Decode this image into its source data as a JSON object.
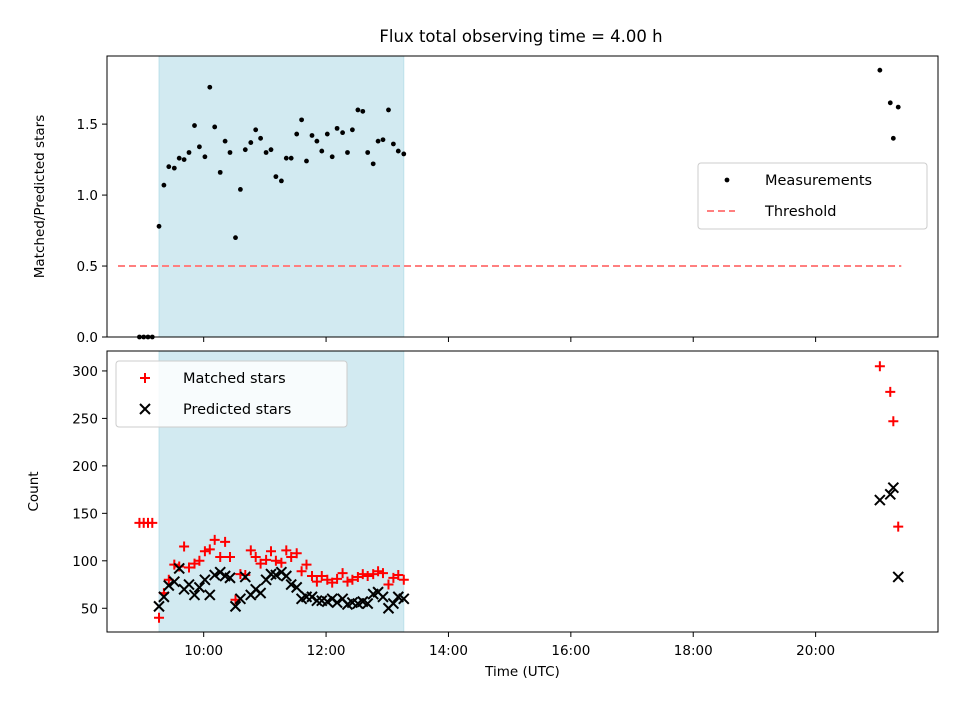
{
  "figure": {
    "title": "Flux total observing time = 4.00 h"
  },
  "chart_data": [
    {
      "type": "scatter",
      "xlabel": "",
      "ylabel": "Matched/Predicted stars",
      "xlim": [
        8.42,
        22.0
      ],
      "ylim": [
        0,
        1.98
      ],
      "yticks": [
        0.0,
        0.5,
        1.0,
        1.5
      ],
      "ytick_labels": [
        "0.0",
        "0.5",
        "1.0",
        "1.5"
      ],
      "xticks": [
        10,
        12,
        14,
        16,
        18,
        20
      ],
      "show_xtick_labels": false,
      "shaded_interval": {
        "x": [
          9.27,
          13.27
        ],
        "color": "#add8e6"
      },
      "legend": {
        "position": "center-right",
        "entries": [
          {
            "label": "Measurements",
            "marker": "dot",
            "color": "#000000"
          },
          {
            "label": "Threshold",
            "marker": "dashed-line",
            "color": "#ff7f7f"
          }
        ]
      },
      "threshold": {
        "name": "Threshold",
        "y": 0.5,
        "x": [
          8.6,
          21.4
        ],
        "color": "#ff7f7f"
      },
      "series": [
        {
          "name": "Measurements",
          "color": "#000000",
          "x": [
            8.95,
            9.02,
            9.09,
            9.16,
            9.27,
            9.35,
            9.43,
            9.52,
            9.6,
            9.68,
            9.76,
            9.85,
            9.93,
            10.02,
            10.1,
            10.18,
            10.27,
            10.35,
            10.43,
            10.52,
            10.6,
            10.68,
            10.77,
            10.85,
            10.93,
            11.02,
            11.1,
            11.18,
            11.27,
            11.35,
            11.43,
            11.52,
            11.6,
            11.68,
            11.77,
            11.85,
            11.93,
            12.02,
            12.1,
            12.18,
            12.27,
            12.35,
            12.43,
            12.52,
            12.6,
            12.68,
            12.77,
            12.85,
            12.93,
            13.02,
            13.1,
            13.18,
            13.27,
            21.05,
            21.22,
            21.27,
            21.35
          ],
          "y": [
            0,
            0,
            0,
            0,
            0.78,
            1.07,
            1.2,
            1.19,
            1.26,
            1.25,
            1.3,
            1.49,
            1.34,
            1.27,
            1.76,
            1.48,
            1.16,
            1.38,
            1.3,
            0.7,
            1.04,
            1.32,
            1.37,
            1.46,
            1.4,
            1.3,
            1.32,
            1.13,
            1.1,
            1.26,
            1.26,
            1.43,
            1.53,
            1.24,
            1.42,
            1.38,
            1.31,
            1.43,
            1.27,
            1.47,
            1.44,
            1.3,
            1.46,
            1.6,
            1.59,
            1.3,
            1.22,
            1.38,
            1.39,
            1.6,
            1.36,
            1.31,
            1.29,
            1.88,
            1.65,
            1.4,
            1.62
          ]
        }
      ]
    },
    {
      "type": "scatter",
      "xlabel": "Time (UTC)",
      "ylabel": "Count",
      "xlim": [
        8.42,
        22.0
      ],
      "ylim": [
        25,
        321
      ],
      "yticks": [
        50,
        100,
        150,
        200,
        250,
        300
      ],
      "ytick_labels": [
        "50",
        "100",
        "150",
        "200",
        "250",
        "300"
      ],
      "xticks": [
        10,
        12,
        14,
        16,
        18,
        20
      ],
      "xtick_labels": [
        "10:00",
        "12:00",
        "14:00",
        "16:00",
        "18:00",
        "20:00"
      ],
      "shaded_interval": {
        "x": [
          9.27,
          13.27
        ],
        "color": "#add8e6"
      },
      "legend": {
        "position": "top-left",
        "entries": [
          {
            "label": "Matched stars",
            "marker": "plus",
            "color": "#ff0000"
          },
          {
            "label": "Predicted stars",
            "marker": "x",
            "color": "#000000"
          }
        ]
      },
      "series": [
        {
          "name": "Matched stars",
          "color": "#ff0000",
          "marker": "plus",
          "x": [
            8.95,
            9.02,
            9.09,
            9.16,
            9.27,
            9.35,
            9.43,
            9.52,
            9.6,
            9.68,
            9.76,
            9.85,
            9.93,
            10.02,
            10.1,
            10.18,
            10.27,
            10.35,
            10.43,
            10.52,
            10.6,
            10.68,
            10.77,
            10.85,
            10.93,
            11.02,
            11.1,
            11.18,
            11.27,
            11.35,
            11.43,
            11.52,
            11.6,
            11.68,
            11.77,
            11.85,
            11.93,
            12.02,
            12.1,
            12.18,
            12.27,
            12.35,
            12.43,
            12.52,
            12.6,
            12.68,
            12.77,
            12.85,
            12.93,
            13.02,
            13.1,
            13.18,
            13.27,
            21.05,
            21.22,
            21.27,
            21.35
          ],
          "y": [
            140,
            140,
            140,
            140,
            40,
            66,
            80,
            96,
            94,
            115,
            93,
            97,
            100,
            110,
            112,
            122,
            104,
            120,
            104,
            59,
            86,
            85,
            111,
            104,
            97,
            101,
            110,
            100,
            98,
            111,
            104,
            108,
            89,
            96,
            84,
            78,
            84,
            80,
            77,
            81,
            87,
            78,
            80,
            83,
            86,
            84,
            86,
            89,
            87,
            75,
            82,
            85,
            80,
            305,
            278,
            247,
            136
          ]
        },
        {
          "name": "Predicted stars",
          "color": "#000000",
          "marker": "x",
          "x": [
            9.27,
            9.35,
            9.43,
            9.52,
            9.6,
            9.68,
            9.76,
            9.85,
            9.93,
            10.02,
            10.1,
            10.18,
            10.27,
            10.35,
            10.43,
            10.52,
            10.6,
            10.68,
            10.77,
            10.85,
            10.93,
            11.02,
            11.1,
            11.18,
            11.27,
            11.35,
            11.43,
            11.52,
            11.6,
            11.68,
            11.77,
            11.85,
            11.93,
            12.02,
            12.1,
            12.18,
            12.27,
            12.35,
            12.43,
            12.52,
            12.6,
            12.68,
            12.77,
            12.85,
            12.93,
            13.02,
            13.1,
            13.18,
            13.27,
            21.05,
            21.22,
            21.27,
            21.35
          ],
          "y": [
            52,
            62,
            74,
            78,
            92,
            70,
            75,
            64,
            72,
            80,
            64,
            85,
            88,
            84,
            82,
            52,
            60,
            83,
            64,
            70,
            66,
            80,
            86,
            85,
            88,
            84,
            75,
            72,
            60,
            62,
            62,
            58,
            58,
            57,
            60,
            56,
            60,
            54,
            56,
            55,
            57,
            55,
            65,
            67,
            62,
            50,
            55,
            62,
            60,
            164,
            170,
            177,
            83
          ]
        }
      ]
    }
  ]
}
